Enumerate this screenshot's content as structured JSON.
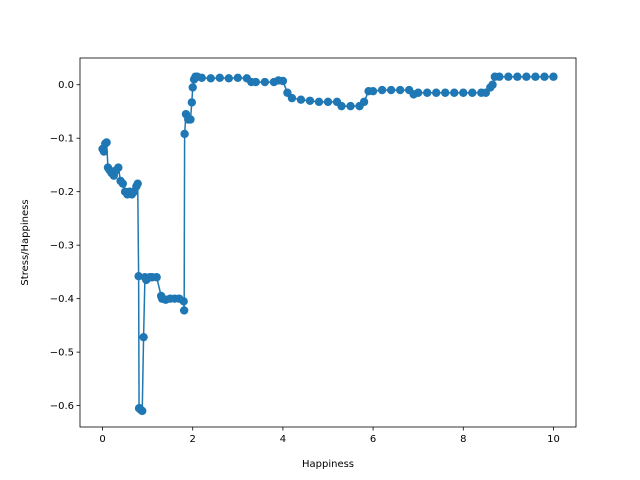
{
  "chart_data": {
    "type": "line",
    "title": "",
    "xlabel": "Happiness",
    "ylabel": "Stress/Happiness",
    "xlim": [
      -0.5,
      10.5
    ],
    "ylim": [
      -0.64,
      0.05
    ],
    "xticks": [
      0,
      2,
      4,
      6,
      8,
      10
    ],
    "yticks": [
      -0.6,
      -0.5,
      -0.4,
      -0.3,
      -0.2,
      -0.1,
      0.0
    ],
    "xtick_labels": [
      "0",
      "2",
      "4",
      "6",
      "8",
      "10"
    ],
    "ytick_labels": [
      "−0.6",
      "−0.5",
      "−0.4",
      "−0.3",
      "−0.2",
      "−0.1",
      "0.0"
    ],
    "grid": false,
    "series": [
      {
        "color": "#1f77b4",
        "marker": "circle",
        "x": [
          0.0,
          0.03,
          0.06,
          0.09,
          0.12,
          0.16,
          0.2,
          0.25,
          0.3,
          0.35,
          0.4,
          0.45,
          0.5,
          0.55,
          0.6,
          0.65,
          0.7,
          0.75,
          0.78,
          0.8,
          0.81,
          0.82,
          0.85,
          0.88,
          0.91,
          0.94,
          0.97,
          1.0,
          1.05,
          1.1,
          1.2,
          1.3,
          1.32,
          1.4,
          1.5,
          1.6,
          1.7,
          1.8,
          1.81,
          1.82,
          1.85,
          1.9,
          1.95,
          1.98,
          2.0,
          2.03,
          2.06,
          2.1,
          2.2,
          2.4,
          2.6,
          2.8,
          3.0,
          3.2,
          3.3,
          3.4,
          3.6,
          3.8,
          3.9,
          4.0,
          4.1,
          4.2,
          4.4,
          4.6,
          4.8,
          5.0,
          5.2,
          5.3,
          5.5,
          5.7,
          5.8,
          5.9,
          6.0,
          6.2,
          6.4,
          6.6,
          6.8,
          6.9,
          7.0,
          7.2,
          7.4,
          7.6,
          7.8,
          8.0,
          8.2,
          8.4,
          8.5,
          8.6,
          8.65,
          8.7,
          8.8,
          9.0,
          9.2,
          9.4,
          9.6,
          9.8,
          10.0
        ],
        "y": [
          -0.12,
          -0.125,
          -0.11,
          -0.108,
          -0.155,
          -0.16,
          -0.165,
          -0.17,
          -0.16,
          -0.155,
          -0.18,
          -0.185,
          -0.2,
          -0.205,
          -0.2,
          -0.205,
          -0.2,
          -0.19,
          -0.185,
          -0.358,
          -0.605,
          -0.605,
          -0.608,
          -0.61,
          -0.472,
          -0.36,
          -0.365,
          -0.362,
          -0.36,
          -0.36,
          -0.36,
          -0.395,
          -0.4,
          -0.402,
          -0.4,
          -0.4,
          -0.4,
          -0.405,
          -0.422,
          -0.092,
          -0.055,
          -0.065,
          -0.065,
          -0.033,
          -0.005,
          0.01,
          0.015,
          0.015,
          0.013,
          0.012,
          0.013,
          0.012,
          0.013,
          0.012,
          0.005,
          0.005,
          0.005,
          0.005,
          0.008,
          0.007,
          -0.015,
          -0.025,
          -0.028,
          -0.03,
          -0.032,
          -0.032,
          -0.032,
          -0.04,
          -0.04,
          -0.04,
          -0.032,
          -0.012,
          -0.012,
          -0.01,
          -0.01,
          -0.01,
          -0.01,
          -0.018,
          -0.015,
          -0.015,
          -0.015,
          -0.015,
          -0.015,
          -0.015,
          -0.015,
          -0.015,
          -0.015,
          -0.005,
          0.0,
          0.015,
          0.015,
          0.015,
          0.015,
          0.015,
          0.015,
          0.015,
          0.015
        ]
      }
    ]
  }
}
